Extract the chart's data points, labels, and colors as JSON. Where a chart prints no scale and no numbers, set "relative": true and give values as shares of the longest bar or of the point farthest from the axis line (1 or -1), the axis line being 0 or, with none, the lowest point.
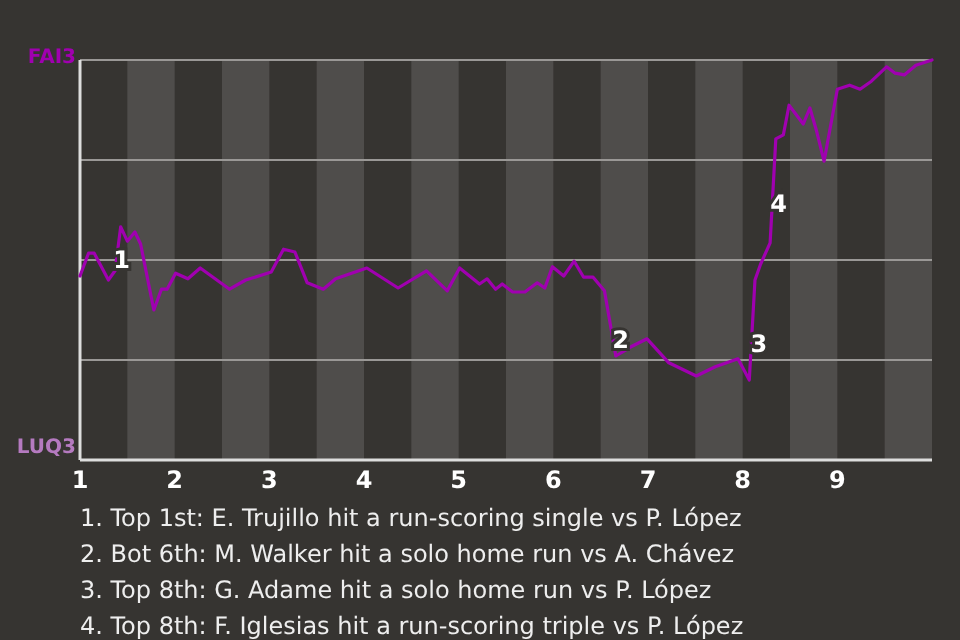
{
  "chart_data": {
    "type": "line",
    "x": [
      1,
      1.09,
      1.15,
      1.3,
      1.37,
      1.43,
      1.5,
      1.58,
      1.64,
      1.78,
      1.86,
      1.92,
      2.01,
      2.14,
      2.27,
      2.58,
      2.75,
      2.93,
      3.02,
      3.15,
      3.27,
      3.4,
      3.57,
      3.7,
      4.03,
      4.36,
      4.66,
      4.88,
      5.01,
      5.22,
      5.3,
      5.39,
      5.46,
      5.57,
      5.7,
      5.83,
      5.91,
      5.99,
      6.11,
      6.22,
      6.32,
      6.42,
      6.54,
      6.66,
      6.82,
      6.99,
      7.22,
      7.51,
      7.71,
      7.95,
      8.07,
      8.13,
      8.19,
      8.29,
      8.35,
      8.43,
      8.49,
      8.64,
      8.71,
      8.78,
      8.86,
      9,
      9.13,
      9.24,
      9.36,
      9.52,
      9.61,
      9.71,
      9.83,
      10
    ],
    "series": [
      {
        "color": "#a000b0",
        "values": [
          0.46,
          0.517,
          0.517,
          0.45,
          0.473,
          0.583,
          0.547,
          0.57,
          0.54,
          0.375,
          0.427,
          0.427,
          0.467,
          0.453,
          0.48,
          0.427,
          0.45,
          0.463,
          0.47,
          0.527,
          0.52,
          0.443,
          0.427,
          0.453,
          0.48,
          0.43,
          0.473,
          0.423,
          0.48,
          0.44,
          0.453,
          0.427,
          0.44,
          0.42,
          0.42,
          0.443,
          0.43,
          0.483,
          0.46,
          0.497,
          0.457,
          0.457,
          0.423,
          0.26,
          0.283,
          0.303,
          0.243,
          0.21,
          0.233,
          0.253,
          0.2,
          0.45,
          0.49,
          0.543,
          0.803,
          0.813,
          0.887,
          0.84,
          0.88,
          0.823,
          0.747,
          0.927,
          0.937,
          0.927,
          0.947,
          0.983,
          0.967,
          0.963,
          0.987,
          1
        ]
      }
    ],
    "relative": true,
    "xlim": [
      1,
      10
    ],
    "xticks": [
      1,
      2,
      3,
      4,
      5,
      6,
      7,
      8,
      9
    ],
    "grid": "y",
    "marker": "none",
    "line_style": "solid",
    "bands": [
      {
        "axis": "x",
        "from": 1.5,
        "to": 2,
        "color": "#4f4d4b"
      },
      {
        "axis": "x",
        "from": 2.5,
        "to": 3,
        "color": "#4f4d4b"
      },
      {
        "axis": "x",
        "from": 3.5,
        "to": 4,
        "color": "#4f4d4b"
      },
      {
        "axis": "x",
        "from": 4.5,
        "to": 5,
        "color": "#4f4d4b"
      },
      {
        "axis": "x",
        "from": 5.5,
        "to": 6,
        "color": "#4f4d4b"
      },
      {
        "axis": "x",
        "from": 6.5,
        "to": 7,
        "color": "#4f4d4b"
      },
      {
        "axis": "x",
        "from": 7.5,
        "to": 8,
        "color": "#4f4d4b"
      },
      {
        "axis": "x",
        "from": 8.5,
        "to": 9,
        "color": "#4f4d4b"
      },
      {
        "axis": "x",
        "from": 9.5,
        "to": 10,
        "color": "#4f4d4b"
      }
    ],
    "annotations": [
      "FAI3",
      "LUQ3",
      {
        "text": "1",
        "x": 1.44,
        "y": 0.5
      },
      {
        "text": "2",
        "x": 6.71,
        "y": 0.3
      },
      {
        "text": "3",
        "x": 8.17,
        "y": 0.29
      },
      {
        "text": "4",
        "x": 8.38,
        "y": 0.64
      },
      "1. Top 1st: E. Trujillo hit a run-scoring single vs P. López",
      "2. Bot 6th: M. Walker hit a solo home run vs A. Chávez",
      "3. Top 8th: G. Adame hit a solo home run vs P. López",
      "4. Top 8th: F. Iglesias hit a run-scoring triple vs P. López"
    ]
  }
}
